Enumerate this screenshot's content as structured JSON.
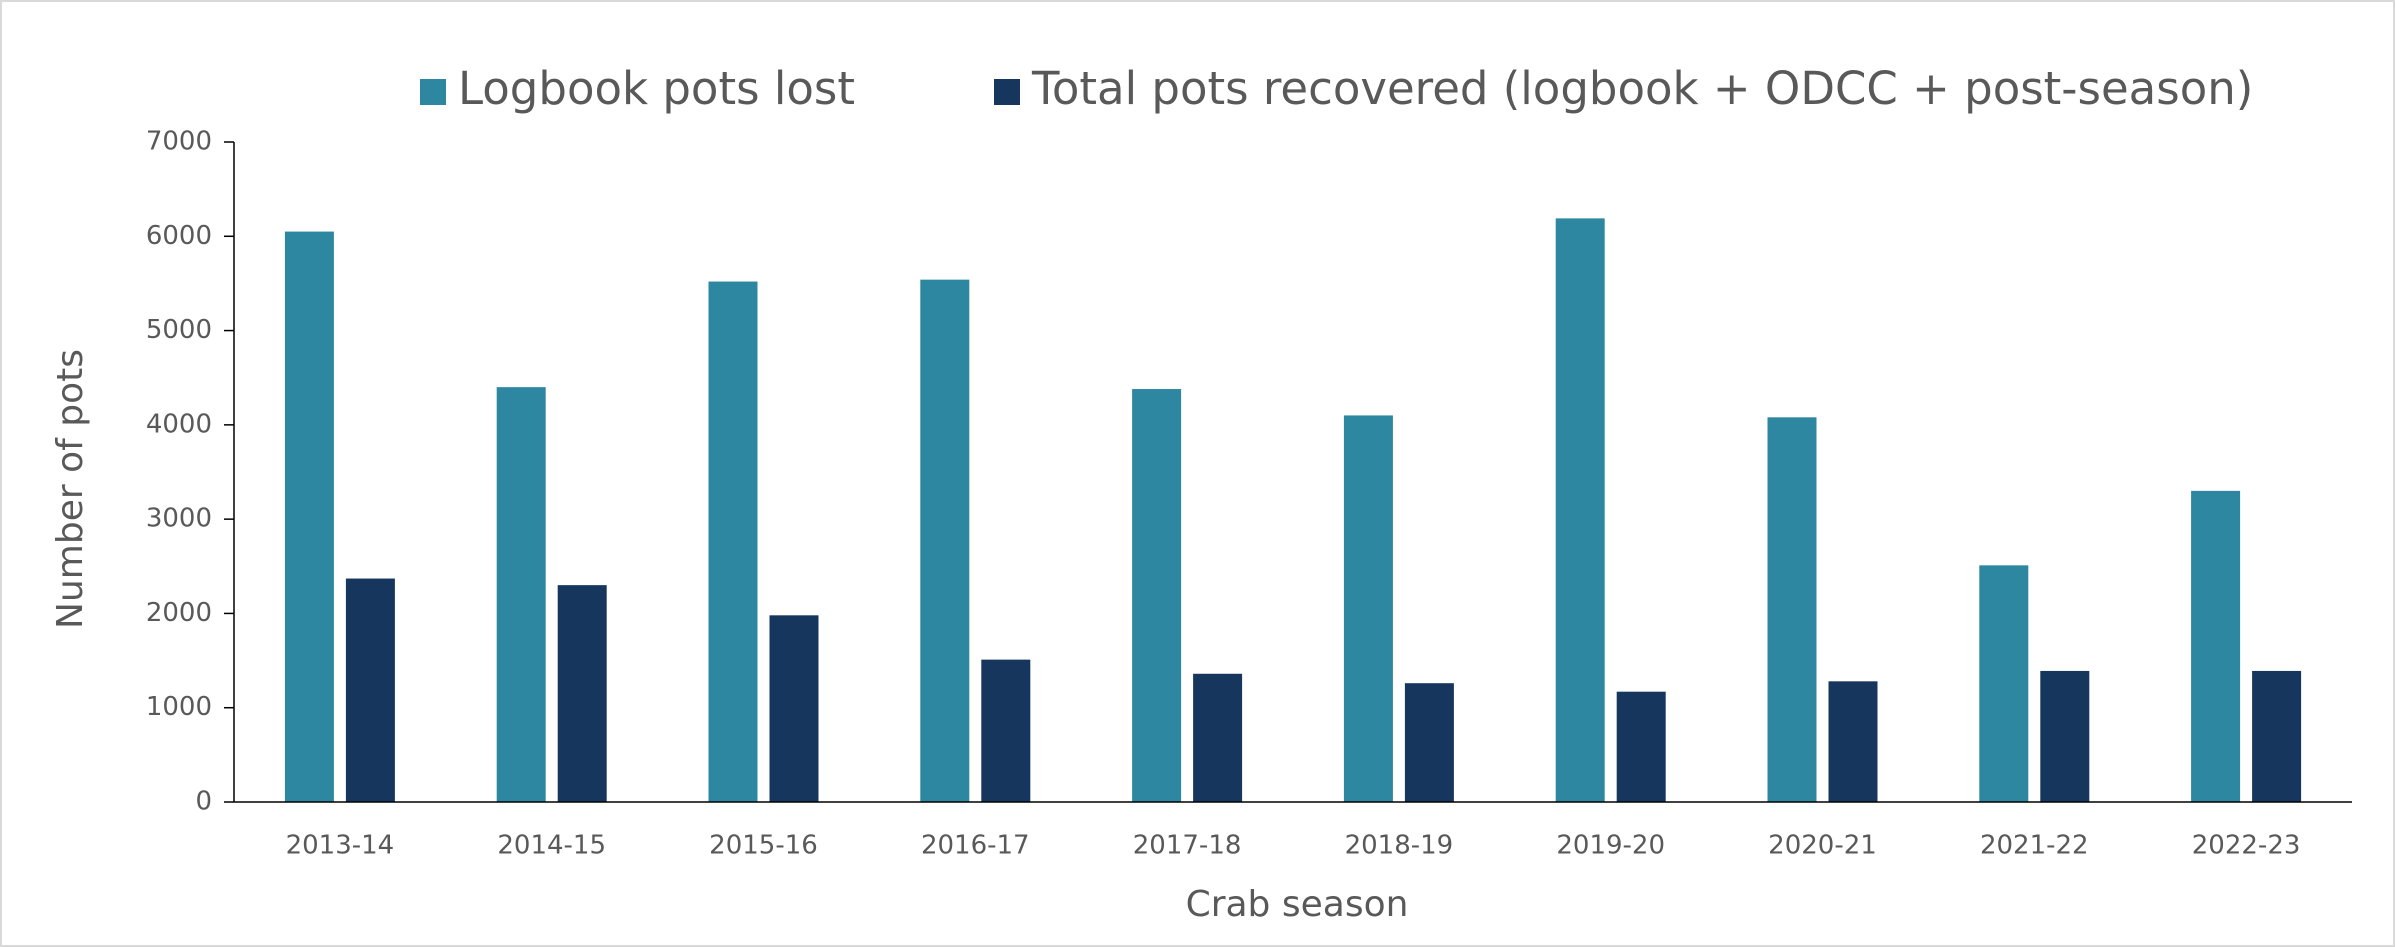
{
  "chart_data": {
    "type": "bar",
    "x_label": "Crab season",
    "y_label": "Number of pots",
    "categories": [
      "2013-14",
      "2014-15",
      "2015-16",
      "2016-17",
      "2017-18",
      "2018-19",
      "2019-20",
      "2020-21",
      "2021-22",
      "2022-23"
    ],
    "series": [
      {
        "name": "Logbook pots lost",
        "color": "#2e87a0",
        "values": [
          6050,
          4400,
          5520,
          5540,
          4380,
          4100,
          6190,
          4080,
          2510,
          3300
        ]
      },
      {
        "name": "Total pots recovered (logbook + ODCC + post-season)",
        "color": "#17365d",
        "values": [
          2370,
          2300,
          1980,
          1510,
          1360,
          1260,
          1170,
          1280,
          1390,
          1390
        ]
      }
    ],
    "ylim": [
      0,
      7000
    ],
    "yticks": [
      0,
      1000,
      2000,
      3000,
      4000,
      5000,
      6000,
      7000
    ],
    "legend": "top"
  }
}
